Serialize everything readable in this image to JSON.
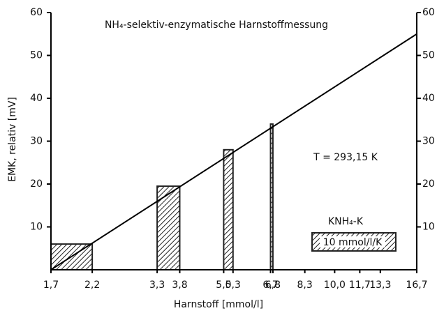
{
  "chart_data": {
    "type": "bar",
    "title": "NH₄-selektiv-enzymatische Harnstoffmessung",
    "xlabel": "Harnstoff [mmol/l]",
    "ylabel": "EMK, relativ [mV]",
    "xscale": "log",
    "xlim": [
      1.7,
      16.7
    ],
    "xticks": [
      {
        "value": 1.7,
        "label": "1,7"
      },
      {
        "value": 2.2,
        "label": "2,2"
      },
      {
        "value": 3.3,
        "label": "3,3"
      },
      {
        "value": 3.8,
        "label": "3,8"
      },
      {
        "value": 5.0,
        "label": "5,0"
      },
      {
        "value": 5.3,
        "label": "5,3"
      },
      {
        "value": 6.7,
        "label": "6,7"
      },
      {
        "value": 6.8,
        "label": "6,8"
      },
      {
        "value": 8.3,
        "label": "8,3"
      },
      {
        "value": 10.0,
        "label": "10,0"
      },
      {
        "value": 11.7,
        "label": "11,7"
      },
      {
        "value": 13.3,
        "label": "13,3"
      },
      {
        "value": 16.7,
        "label": "16,7"
      }
    ],
    "ylim": [
      0,
      60
    ],
    "yticks": [
      10,
      20,
      30,
      40,
      50,
      60
    ],
    "y2lim": [
      0,
      60
    ],
    "y2ticks": [
      10,
      20,
      30,
      40,
      50,
      60
    ],
    "bars": {
      "name": "10 mmol/l/K",
      "color": "#222222",
      "x_start": [
        1.7,
        3.3,
        5.0,
        6.7
      ],
      "x_end": [
        2.2,
        3.8,
        5.3,
        6.8
      ],
      "values": [
        6,
        19.5,
        28,
        34
      ]
    },
    "line": {
      "color": "#000000",
      "x": [
        1.7,
        16.7
      ],
      "values": [
        0,
        55
      ]
    },
    "legend_title": "KNH₄-K",
    "annotations": [
      "T = 293,15 K"
    ]
  }
}
